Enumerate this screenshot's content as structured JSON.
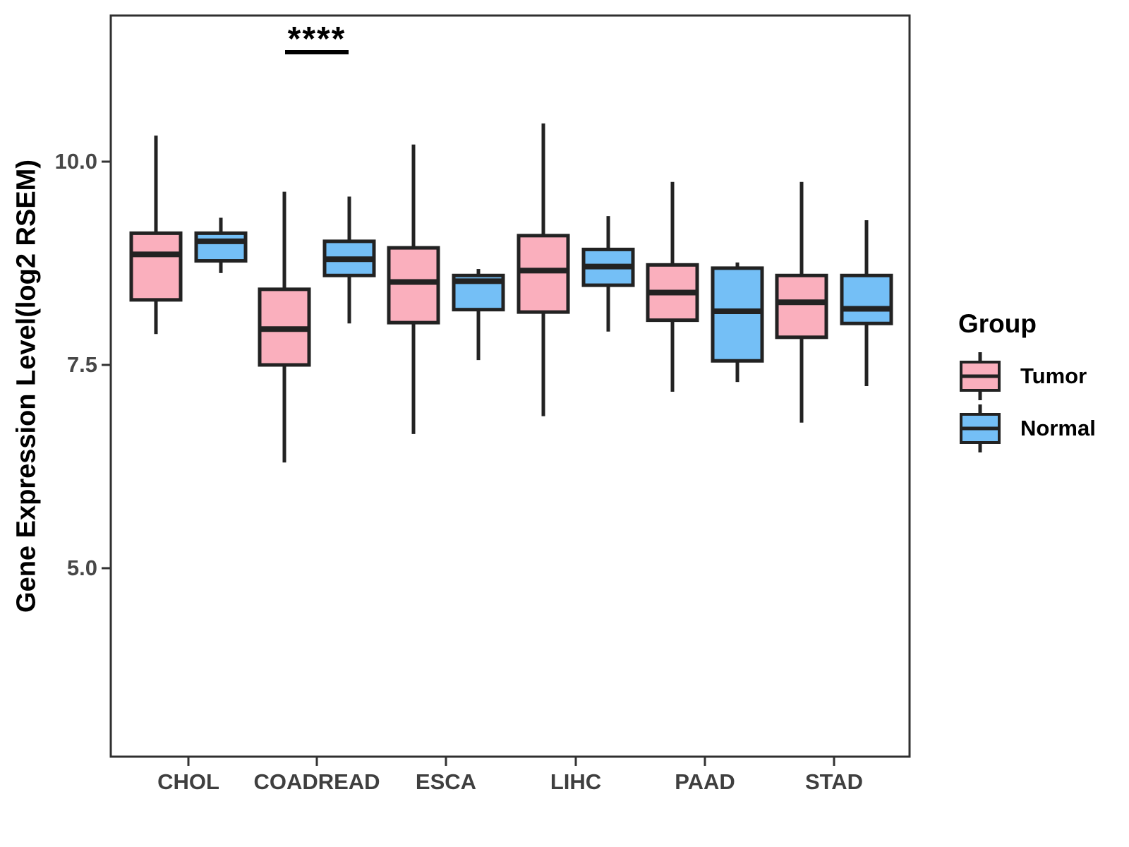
{
  "y_axis": {
    "title": "Gene Expression Level(log2 RSEM)",
    "ticks": [
      {
        "label": "10.0",
        "value": 10.0
      },
      {
        "label": "7.5",
        "value": 7.5
      },
      {
        "label": "5.0",
        "value": 5.0
      }
    ]
  },
  "legend": {
    "title": "Group",
    "items": [
      {
        "label": "Tumor",
        "color": "#FAAFBD"
      },
      {
        "label": "Normal",
        "color": "#74BFF6"
      }
    ]
  },
  "colors": {
    "tumor_fill": "#FAAFBD",
    "normal_fill": "#74BFF6",
    "line": "#222222",
    "panel_border": "#2f2f2f",
    "tick": "#333333"
  },
  "chart_data": {
    "type": "boxplot",
    "title": "",
    "xlabel": "",
    "ylabel": "Gene Expression Level(log2 RSEM)",
    "categories": [
      "CHOL",
      "COADREAD",
      "ESCA",
      "LIHC",
      "PAAD",
      "STAD"
    ],
    "y_tick_values": [
      10.0,
      7.5,
      5.0
    ],
    "ylim": [
      2.7,
      11.8
    ],
    "legend_position": "right",
    "grid": false,
    "annotation": {
      "text": "****",
      "category": "COADREAD",
      "underline": true
    },
    "series": [
      {
        "name": "Tumor",
        "fill": "#FAAFBD",
        "boxes": [
          {
            "category": "CHOL",
            "min": 7.88,
            "q1": 8.3,
            "median": 8.86,
            "q3": 9.12,
            "max": 10.32
          },
          {
            "category": "COADREAD",
            "min": 6.3,
            "q1": 7.5,
            "median": 7.94,
            "q3": 8.43,
            "max": 9.63
          },
          {
            "category": "ESCA",
            "min": 6.65,
            "q1": 8.02,
            "median": 8.52,
            "q3": 8.94,
            "max": 10.21
          },
          {
            "category": "LIHC",
            "min": 6.87,
            "q1": 8.15,
            "median": 8.66,
            "q3": 9.09,
            "max": 10.47
          },
          {
            "category": "PAAD",
            "min": 7.17,
            "q1": 8.05,
            "median": 8.39,
            "q3": 8.73,
            "max": 9.75
          },
          {
            "category": "STAD",
            "min": 6.79,
            "q1": 7.84,
            "median": 8.27,
            "q3": 8.6,
            "max": 9.75
          }
        ]
      },
      {
        "name": "Normal",
        "fill": "#74BFF6",
        "boxes": [
          {
            "category": "CHOL",
            "min": 8.63,
            "q1": 8.78,
            "median": 9.02,
            "q3": 9.12,
            "max": 9.31
          },
          {
            "category": "COADREAD",
            "min": 8.01,
            "q1": 8.6,
            "median": 8.8,
            "q3": 9.02,
            "max": 9.57
          },
          {
            "category": "ESCA",
            "min": 7.56,
            "q1": 8.18,
            "median": 8.53,
            "q3": 8.6,
            "max": 8.68
          },
          {
            "category": "LIHC",
            "min": 7.91,
            "q1": 8.48,
            "median": 8.71,
            "q3": 8.92,
            "max": 9.33
          },
          {
            "category": "PAAD",
            "min": 7.29,
            "q1": 7.55,
            "median": 8.16,
            "q3": 8.69,
            "max": 8.76
          },
          {
            "category": "STAD",
            "min": 7.24,
            "q1": 8.01,
            "median": 8.19,
            "q3": 8.6,
            "max": 9.28
          }
        ]
      }
    ]
  }
}
